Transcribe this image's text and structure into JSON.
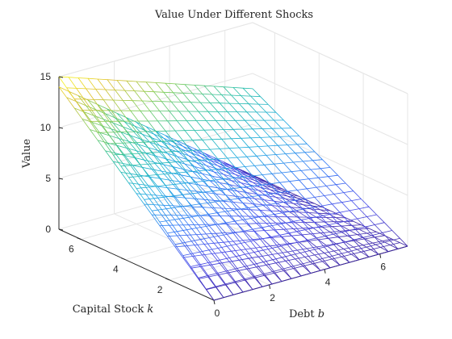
{
  "chart_data": {
    "type": "surface-mesh",
    "title": "Value Under Different Shocks",
    "xlabel": "Debt b",
    "xlabel_text": "Debt ",
    "xlabel_var": "b",
    "ylabel": "Capital Stock k",
    "ylabel_text": "Capital Stock ",
    "ylabel_var": "k",
    "zlabel": "Value",
    "xlim": [
      0,
      7
    ],
    "ylim": [
      0,
      7
    ],
    "zlim": [
      0,
      15
    ],
    "xticks": [
      0,
      2,
      4,
      6
    ],
    "yticks": [
      2,
      4,
      6
    ],
    "zticks": [
      0,
      5,
      10,
      15
    ],
    "grid": true,
    "colormap": "parula",
    "grid_size": 20,
    "surfaces": [
      {
        "corners": {
          "b0_k0": 0.0,
          "b7_k0": 0.0,
          "b0_k7": 14.0,
          "b7_k7": 0.0
        },
        "approx_values_b_rows_k_cols": [
          [
            0,
            3.5,
            7,
            10.5,
            14
          ],
          [
            0,
            2.6,
            5.3,
            7.9,
            10.5
          ],
          [
            0,
            1.8,
            3.5,
            5.3,
            7
          ],
          [
            0,
            0.9,
            1.8,
            2.6,
            3.5
          ],
          [
            0,
            0,
            0,
            0,
            0
          ]
        ],
        "grid_b": [
          0,
          1.75,
          3.5,
          5.25,
          7
        ],
        "grid_k": [
          0,
          1.75,
          3.5,
          5.25,
          7
        ]
      },
      {
        "corners": {
          "b0_k0": 0.0,
          "b7_k0": 0.0,
          "b0_k7": 15.0,
          "b7_k7": 8.5
        },
        "approx_values_b_rows_k_cols": [
          [
            0,
            3.75,
            7.5,
            11.25,
            15
          ],
          [
            0,
            3.34,
            6.69,
            10.03,
            13.38
          ],
          [
            0,
            2.94,
            5.88,
            8.81,
            11.75
          ],
          [
            0,
            2.53,
            5.06,
            7.59,
            10.13
          ],
          [
            0,
            2.13,
            4.25,
            6.38,
            8.5
          ]
        ],
        "grid_b": [
          0,
          1.75,
          3.5,
          5.25,
          7
        ],
        "grid_k": [
          0,
          1.75,
          3.5,
          5.25,
          7
        ]
      }
    ]
  }
}
